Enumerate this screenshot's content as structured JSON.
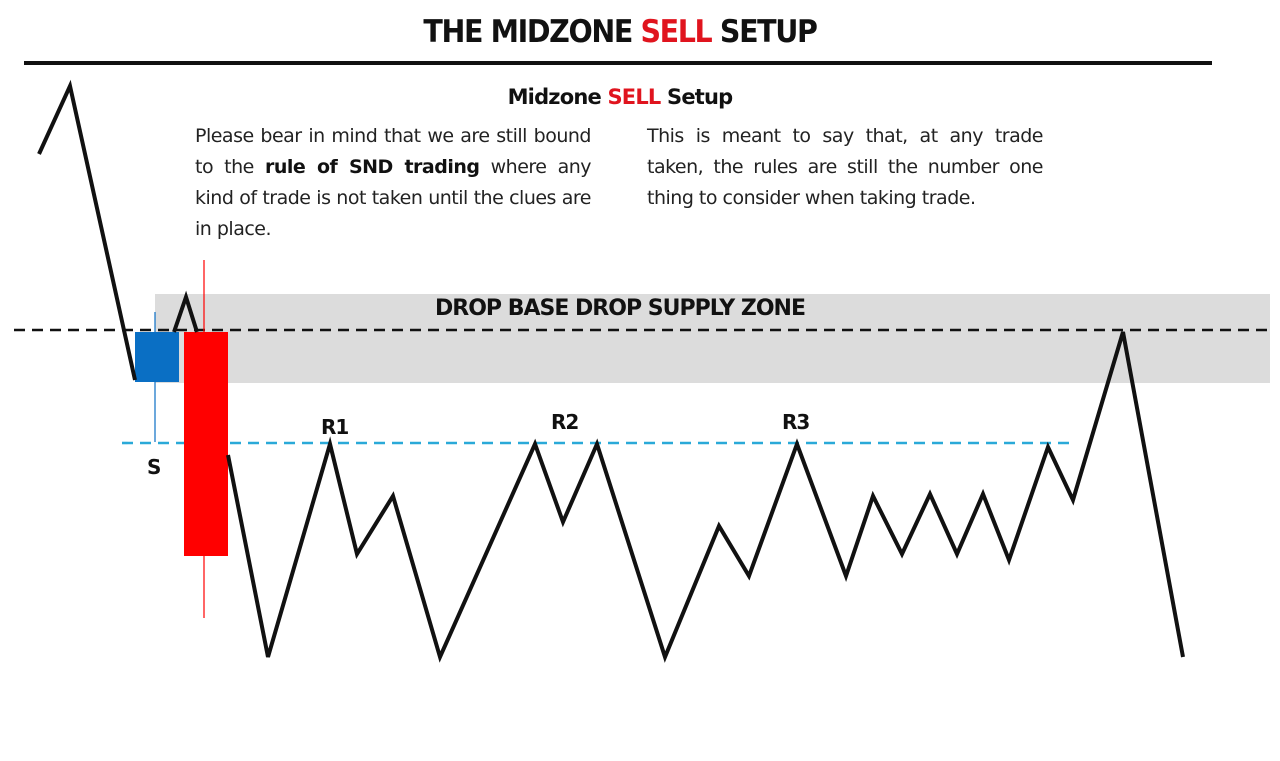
{
  "title": {
    "prefix": "THE MIDZONE",
    "accent": "SELL",
    "suffix": "SETUP"
  },
  "subtitle": {
    "prefix": "Midzone",
    "accent": "SELL",
    "suffix": "Setup"
  },
  "paragraphs": {
    "left": {
      "part1": "Please bear in mind that we are still bound to the",
      "bold": "rule of SND trading",
      "part2": "where any kind of trade is not taken until the clues are in place."
    },
    "right": "This is meant to say that, at any trade taken, the rules are still the number one thing to consider when taking trade."
  },
  "zone": {
    "label": "DROP BASE DROP SUPPLY ZONE"
  },
  "labels": {
    "s": "S",
    "r1": "R1",
    "r2": "R2",
    "r3": "R3"
  },
  "colors": {
    "accent_red": "#e0141e",
    "zone_fill": "#dcdcdc",
    "candle_blue": "#0a6fc4",
    "candle_red": "#ff0000",
    "support_line": "#2aa9d8",
    "price_line": "#111111"
  }
}
